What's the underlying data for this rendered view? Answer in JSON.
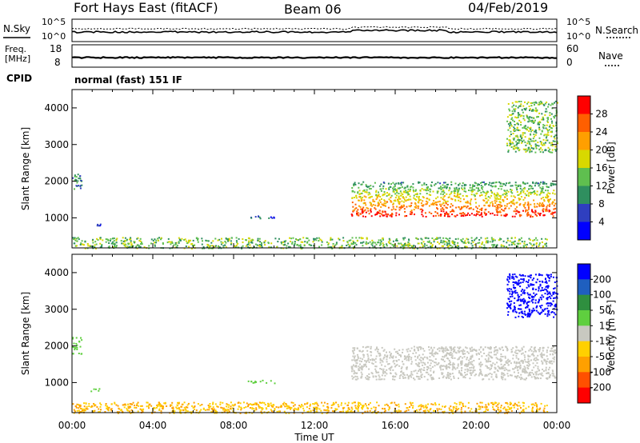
{
  "header": {
    "station": "Fort Hays East (fitACF)",
    "beam": "Beam 06",
    "date": "04/Feb/2019"
  },
  "noise_panel": {
    "left_label": "N.Sky",
    "right_label": "N.Search",
    "left_ticks": [
      "10^5",
      "10^0"
    ],
    "right_ticks": [
      "10^5",
      "10^0"
    ]
  },
  "freq_panel": {
    "left_label_1": "Freq.",
    "left_label_2": "[MHz]",
    "right_label": "Nave",
    "left_ticks": [
      "18",
      "8"
    ],
    "right_ticks": [
      "60",
      "0"
    ],
    "cpid_label": "CPID",
    "mode": "normal (fast) 151 IF"
  },
  "colors": {
    "power_scale": [
      "#0000ff",
      "#2f3fbf",
      "#2f8f5f",
      "#5fbf4f",
      "#d8d800",
      "#ff9f00",
      "#ff5f00",
      "#ff0000"
    ],
    "velocity_scale": [
      "#0000ff",
      "#1f5fbf",
      "#2f8f3f",
      "#5fcf3f",
      "#c8c8c0",
      "#ffd000",
      "#ffa000",
      "#ff5000",
      "#ff0000"
    ]
  },
  "chart_data": [
    {
      "type": "heatmap",
      "name": "power",
      "xlabel": "",
      "ylabel": "Slant Range [km]",
      "x_ticks": [
        "00:00",
        "04:00",
        "08:00",
        "12:00",
        "16:00",
        "20:00",
        "00:00"
      ],
      "x_range_hours": [
        0,
        24
      ],
      "y_ticks": [
        1000,
        2000,
        3000,
        4000
      ],
      "y_range_km": [
        180,
        4500
      ],
      "colorbar": {
        "label": "Power [dB]",
        "ticks": [
          4,
          8,
          12,
          16,
          20,
          24,
          28
        ],
        "range": [
          0,
          32
        ]
      },
      "regions": [
        {
          "t": [
            0.0,
            0.45
          ],
          "r": [
            1750,
            2250
          ],
          "value": 10
        },
        {
          "t": [
            0.9,
            1.4
          ],
          "r": [
            780,
            860
          ],
          "value": 7
        },
        {
          "t": [
            0.0,
            23.5
          ],
          "r": [
            180,
            480
          ],
          "value": 14
        },
        {
          "t": [
            8.7,
            10.0
          ],
          "r": [
            1000,
            1080
          ],
          "value": 7
        },
        {
          "t": [
            13.8,
            23.9
          ],
          "r": [
            1050,
            2000
          ],
          "value": 20
        },
        {
          "t": [
            21.5,
            24.0
          ],
          "r": [
            2800,
            4200
          ],
          "value": 14
        }
      ]
    },
    {
      "type": "heatmap",
      "name": "velocity",
      "xlabel": "Time UT",
      "ylabel": "Slant Range [km]",
      "x_ticks": [
        "00:00",
        "04:00",
        "08:00",
        "12:00",
        "16:00",
        "20:00",
        "00:00"
      ],
      "x_range_hours": [
        0,
        24
      ],
      "y_ticks": [
        1000,
        2000,
        3000,
        4000
      ],
      "y_range_km": [
        180,
        4500
      ],
      "colorbar": {
        "label": "Velocity [m s^-1]",
        "ticks": [
          "200",
          "100",
          "50",
          "15",
          "-15",
          "-50",
          "-100",
          "-200"
        ]
      },
      "regions": [
        {
          "t": [
            0.0,
            0.45
          ],
          "r": [
            1800,
            2250
          ],
          "value": 40
        },
        {
          "t": [
            0.9,
            1.4
          ],
          "r": [
            780,
            860
          ],
          "value": 40
        },
        {
          "t": [
            0.0,
            23.5
          ],
          "r": [
            180,
            480
          ],
          "value": -30
        },
        {
          "t": [
            8.7,
            10.0
          ],
          "r": [
            1000,
            1080
          ],
          "value": 30
        },
        {
          "t": [
            13.8,
            23.9
          ],
          "r": [
            1100,
            2000
          ],
          "value": 0
        },
        {
          "t": [
            21.5,
            24.0
          ],
          "r": [
            2800,
            4000
          ],
          "value": 200
        }
      ]
    }
  ]
}
